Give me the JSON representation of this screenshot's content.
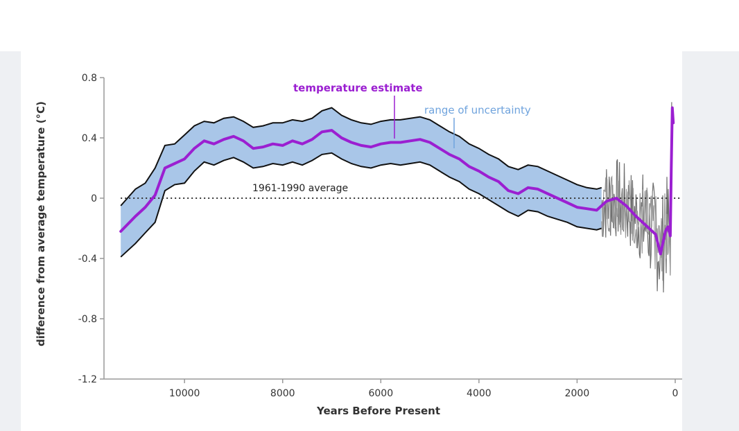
{
  "chart_data": {
    "type": "line",
    "xlabel": "Years Before Present",
    "ylabel": "difference from average temperature (°C)",
    "xlim": [
      11500,
      0
    ],
    "ylim": [
      -1.2,
      0.8
    ],
    "xticks": [
      10000,
      8000,
      6000,
      4000,
      2000,
      0
    ],
    "yticks": [
      0.8,
      0.4,
      0,
      -0.4,
      -0.8,
      -1.2
    ],
    "ytick_labels": [
      "0.8",
      "0.4",
      "0",
      "-0.4",
      "-0.8",
      "-1.2"
    ],
    "reference_line": {
      "y": 0,
      "label": "1961-1990 average",
      "style": "dotted"
    },
    "annotations": {
      "estimate": "temperature estimate",
      "uncertainty": "range of uncertainty"
    },
    "colors": {
      "estimate": "#9b1fd1",
      "band_fill": "#a9c6e8",
      "band_edge": "#111111",
      "uncertainty_label": "#6fa3dd",
      "instrument": "#6e6e6e"
    },
    "series": [
      {
        "x": [
          11300,
          11000,
          10800,
          10600,
          10400,
          10200,
          10000,
          9800,
          9600,
          9400,
          9200,
          9000,
          8800,
          8600,
          8400,
          8200,
          8000,
          7800,
          7600,
          7400,
          7200,
          7000,
          6800,
          6600,
          6400,
          6200,
          6000,
          5800,
          5600,
          5400,
          5200,
          5000,
          4800,
          4600,
          4400,
          4200,
          4000,
          3800,
          3600,
          3400,
          3200,
          3000,
          2800,
          2600,
          2400,
          2200,
          2000,
          1800,
          1600,
          1400,
          1200,
          1000,
          800,
          600,
          400,
          300,
          200,
          150,
          100,
          80,
          60,
          40
        ],
        "values": [
          -0.22,
          -0.12,
          -0.06,
          0.02,
          0.2,
          0.23,
          0.26,
          0.33,
          0.38,
          0.36,
          0.39,
          0.41,
          0.38,
          0.33,
          0.34,
          0.36,
          0.35,
          0.38,
          0.36,
          0.39,
          0.44,
          0.45,
          0.4,
          0.37,
          0.35,
          0.34,
          0.36,
          0.37,
          0.37,
          0.38,
          0.39,
          0.37,
          0.33,
          0.29,
          0.26,
          0.21,
          0.18,
          0.14,
          0.11,
          0.05,
          0.03,
          0.07,
          0.06,
          0.03,
          0.0,
          -0.03,
          -0.06,
          -0.07,
          -0.08,
          -0.02,
          0.0,
          -0.05,
          -0.12,
          -0.18,
          -0.24,
          -0.37,
          -0.22,
          -0.19,
          -0.25,
          0.2,
          0.6,
          0.5
        ]
      },
      {
        "x": [
          11300,
          11000,
          10800,
          10600,
          10400,
          10200,
          10000,
          9800,
          9600,
          9400,
          9200,
          9000,
          8800,
          8600,
          8400,
          8200,
          8000,
          7800,
          7600,
          7400,
          7200,
          7000,
          6800,
          6600,
          6400,
          6200,
          6000,
          5800,
          5600,
          5400,
          5200,
          5000,
          4800,
          4600,
          4400,
          4200,
          4000,
          3800,
          3600,
          3400,
          3200,
          3000,
          2800,
          2600,
          2400,
          2200,
          2000,
          1800,
          1600,
          1500
        ],
        "upper": [
          -0.05,
          0.06,
          0.1,
          0.2,
          0.35,
          0.36,
          0.42,
          0.48,
          0.51,
          0.5,
          0.53,
          0.54,
          0.51,
          0.47,
          0.48,
          0.5,
          0.5,
          0.52,
          0.51,
          0.53,
          0.58,
          0.6,
          0.55,
          0.52,
          0.5,
          0.49,
          0.51,
          0.52,
          0.52,
          0.53,
          0.54,
          0.52,
          0.48,
          0.44,
          0.41,
          0.36,
          0.33,
          0.29,
          0.26,
          0.21,
          0.19,
          0.22,
          0.21,
          0.18,
          0.15,
          0.12,
          0.09,
          0.07,
          0.06,
          0.07
        ],
        "lower": [
          -0.39,
          -0.3,
          -0.23,
          -0.16,
          0.05,
          0.09,
          0.1,
          0.18,
          0.24,
          0.22,
          0.25,
          0.27,
          0.24,
          0.2,
          0.21,
          0.23,
          0.22,
          0.24,
          0.22,
          0.25,
          0.29,
          0.3,
          0.26,
          0.23,
          0.21,
          0.2,
          0.22,
          0.23,
          0.22,
          0.23,
          0.24,
          0.22,
          0.18,
          0.14,
          0.11,
          0.06,
          0.03,
          -0.01,
          -0.05,
          -0.09,
          -0.12,
          -0.08,
          -0.09,
          -0.12,
          -0.14,
          -0.16,
          -0.19,
          -0.2,
          -0.21,
          -0.2
        ]
      }
    ]
  }
}
